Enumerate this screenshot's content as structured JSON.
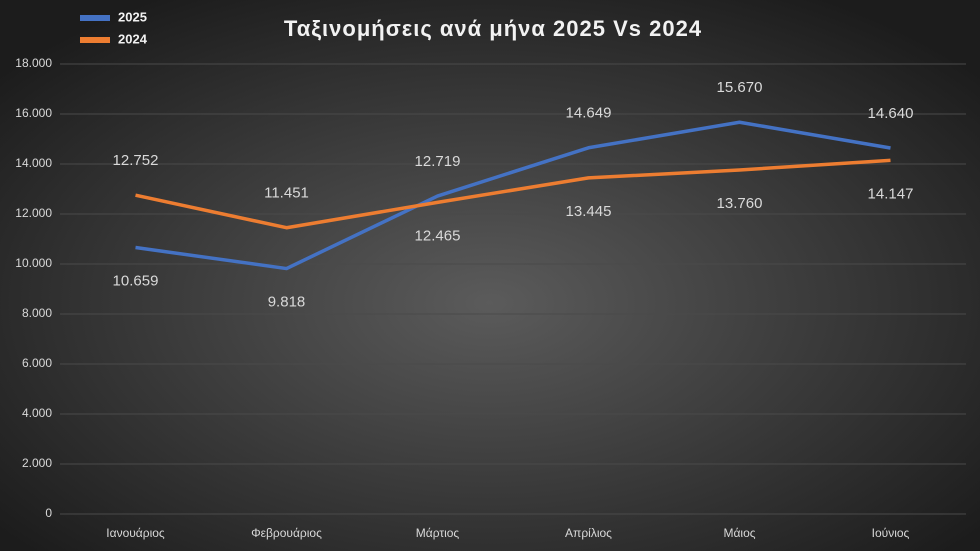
{
  "chart_data": {
    "type": "line",
    "title": "Ταξινομήσεις  ανά μήνα 2025 Vs 2024",
    "categories": [
      "Ιανουάριος",
      "Φεβρουάριος",
      "Μάρτιος",
      "Απρίλιος",
      "Μάιος",
      "Ιούνιος"
    ],
    "series": [
      {
        "name": "2025",
        "color": "#4472c4",
        "values": [
          10659,
          9818,
          12719,
          14649,
          15670,
          14640
        ],
        "value_labels": [
          "10.659",
          "9.818",
          "12.719",
          "14.649",
          "15.670",
          "14.640"
        ]
      },
      {
        "name": "2024",
        "color": "#ed7d31",
        "values": [
          12752,
          11451,
          12465,
          13445,
          13760,
          14147
        ],
        "value_labels": [
          "12.752",
          "11.451",
          "12.465",
          "13.445",
          "13.760",
          "14.147"
        ]
      }
    ],
    "ylim": [
      0,
      18000
    ],
    "yticks": [
      0,
      {
        "value": 2000,
        "label": "2.000"
      },
      {
        "value": 4000,
        "label": "4.000"
      },
      {
        "value": 6000,
        "label": "6.000"
      },
      {
        "value": 8000,
        "label": "8.000"
      },
      {
        "value": 10000,
        "label": "10.000"
      },
      {
        "value": 12000,
        "label": "12.000"
      },
      {
        "value": 14000,
        "label": "14.000"
      },
      {
        "value": 16000,
        "label": "16.000"
      },
      {
        "value": 18000,
        "label": "18.000"
      }
    ],
    "grid": true,
    "legend": "top-left"
  }
}
